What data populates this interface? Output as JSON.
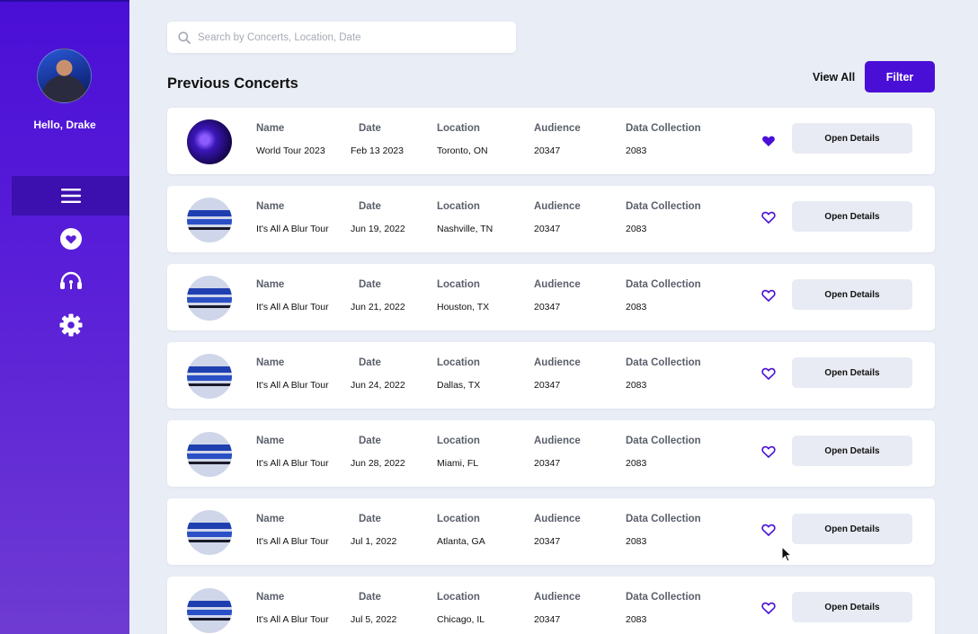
{
  "sidebar": {
    "greeting": "Hello, Drake",
    "nav": [
      "menu-icon",
      "heart-icon",
      "headset-icon",
      "gear-icon"
    ]
  },
  "search": {
    "placeholder": "Search by Concerts, Location, Date"
  },
  "section_title": "Previous Concerts",
  "view_all_label": "View All",
  "filter_label": "Filter",
  "column_headers": {
    "name": "Name",
    "date": "Date",
    "location": "Location",
    "audience": "Audience",
    "data_collection": "Data Collection"
  },
  "open_details_label": "Open Details",
  "colors": {
    "accent": "#4a0fd6",
    "heart": "#4a0fd6",
    "background": "#e9edf5"
  },
  "concerts": [
    {
      "name": "World Tour 2023",
      "date": "Feb 13 2023",
      "location": "Toronto, ON",
      "audience": "20347",
      "data_collection": "2083",
      "favorite": true
    },
    {
      "name": "It's All A Blur Tour",
      "date": "Jun 19, 2022",
      "location": "Nashville, TN",
      "audience": "20347",
      "data_collection": "2083",
      "favorite": false
    },
    {
      "name": "It's All A Blur Tour",
      "date": "Jun 21, 2022",
      "location": "Houston, TX",
      "audience": "20347",
      "data_collection": "2083",
      "favorite": false
    },
    {
      "name": "It's All A Blur Tour",
      "date": "Jun 24, 2022",
      "location": "Dallas, TX",
      "audience": "20347",
      "data_collection": "2083",
      "favorite": false
    },
    {
      "name": "It's All A Blur Tour",
      "date": "Jun 28, 2022",
      "location": "Miami, FL",
      "audience": "20347",
      "data_collection": "2083",
      "favorite": false
    },
    {
      "name": "It's All A Blur Tour",
      "date": "Jul 1, 2022",
      "location": "Atlanta, GA",
      "audience": "20347",
      "data_collection": "2083",
      "favorite": false
    },
    {
      "name": "It's All A Blur Tour",
      "date": "Jul 5, 2022",
      "location": "Chicago, IL",
      "audience": "20347",
      "data_collection": "2083",
      "favorite": false
    }
  ]
}
